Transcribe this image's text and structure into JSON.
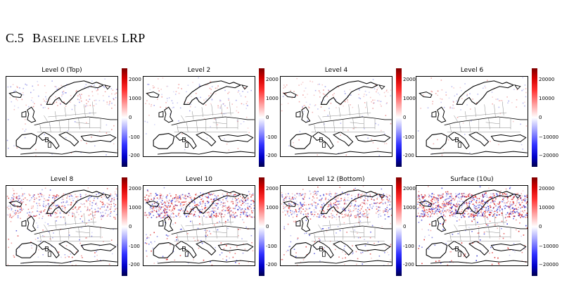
{
  "section": {
    "number": "C.5",
    "title": "Baseline levels LRP"
  },
  "panels": [
    {
      "title": "Level 0 (Top)",
      "intensity": 0.15,
      "ticks": [
        "2000",
        "1000",
        "0",
        "-100",
        "-200"
      ]
    },
    {
      "title": "Level 2",
      "intensity": 0.1,
      "ticks": [
        "2000",
        "1000",
        "0",
        "-100",
        "-200"
      ]
    },
    {
      "title": "Level 4",
      "intensity": 0.12,
      "ticks": [
        "2000",
        "1000",
        "0",
        "-100",
        "-200"
      ]
    },
    {
      "title": "Level 6",
      "intensity": 0.05,
      "ticks": [
        "20000",
        "10000",
        "0",
        "−10000",
        "−20000"
      ]
    },
    {
      "title": "Level 8",
      "intensity": 0.55,
      "ticks": [
        "2000",
        "1000",
        "0",
        "-100",
        "-200"
      ]
    },
    {
      "title": "Level 10",
      "intensity": 0.8,
      "ticks": [
        "2000",
        "1000",
        "0",
        "-100",
        "-200"
      ]
    },
    {
      "title": "Level 12 (Bottom)",
      "intensity": 0.65,
      "ticks": [
        "2000",
        "1000",
        "0",
        "-100",
        "-200"
      ]
    },
    {
      "title": "Surface (10u)",
      "intensity": 0.95,
      "ticks": [
        "20000",
        "10000",
        "0",
        "−10000",
        "−20000"
      ]
    }
  ],
  "colors": {
    "positive": "#d40000",
    "negative": "#1a1acc",
    "coast": "#000000",
    "borders": "#888888"
  }
}
